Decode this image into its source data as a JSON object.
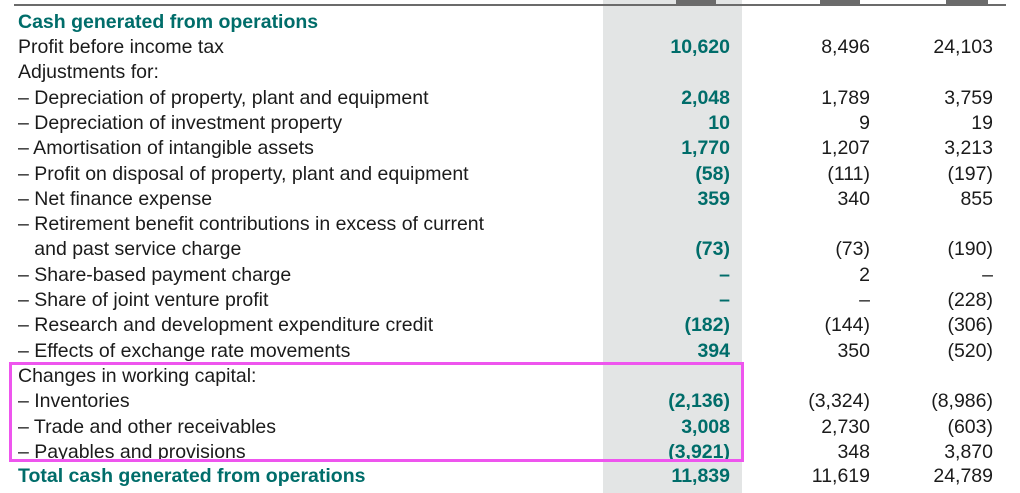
{
  "highlight_color": "#ee55ee",
  "accent_color": "#006d6a",
  "title": "Cash generated from operations",
  "rows": [
    {
      "label": "Profit before income tax",
      "v1": "10,620",
      "v2": "8,496",
      "v3": "24,103"
    },
    {
      "label": "Adjustments for:",
      "v1": "",
      "v2": "",
      "v3": ""
    },
    {
      "label": "– Depreciation of property, plant and equipment",
      "v1": "2,048",
      "v2": "1,789",
      "v3": "3,759"
    },
    {
      "label": "– Depreciation of investment property",
      "v1": "10",
      "v2": "9",
      "v3": "19"
    },
    {
      "label": "– Amortisation of intangible assets",
      "v1": "1,770",
      "v2": "1,207",
      "v3": "3,213"
    },
    {
      "label": "– Profit on disposal of property, plant and equipment",
      "v1": "(58)",
      "v2": "(111)",
      "v3": "(197)"
    },
    {
      "label": "– Net finance expense",
      "v1": "359",
      "v2": "340",
      "v3": "855"
    },
    {
      "label": "– Retirement benefit contributions in excess of current",
      "v1": "",
      "v2": "",
      "v3": ""
    },
    {
      "label": "   and past service charge",
      "v1": "(73)",
      "v2": "(73)",
      "v3": "(190)"
    },
    {
      "label": "– Share-based payment charge",
      "v1": "–",
      "v2": "2",
      "v3": "–"
    },
    {
      "label": "– Share of joint venture profit",
      "v1": "–",
      "v2": "–",
      "v3": "(228)"
    },
    {
      "label": "– Research and development expenditure credit",
      "v1": "(182)",
      "v2": "(144)",
      "v3": "(306)"
    },
    {
      "label": "– Effects of exchange rate movements",
      "v1": "394",
      "v2": "350",
      "v3": "(520)"
    },
    {
      "label": "Changes in working capital:",
      "v1": "",
      "v2": "",
      "v3": ""
    },
    {
      "label": "– Inventories",
      "v1": "(2,136)",
      "v2": "(3,324)",
      "v3": "(8,986)"
    },
    {
      "label": "– Trade and other receivables",
      "v1": "3,008",
      "v2": "2,730",
      "v3": "(603)"
    },
    {
      "label": "– Payables and provisions",
      "v1": "(3,921)",
      "v2": "348",
      "v3": "3,870"
    }
  ],
  "total": {
    "label": "Total cash generated from operations",
    "v1": "11,839",
    "v2": "11,619",
    "v3": "24,789"
  }
}
